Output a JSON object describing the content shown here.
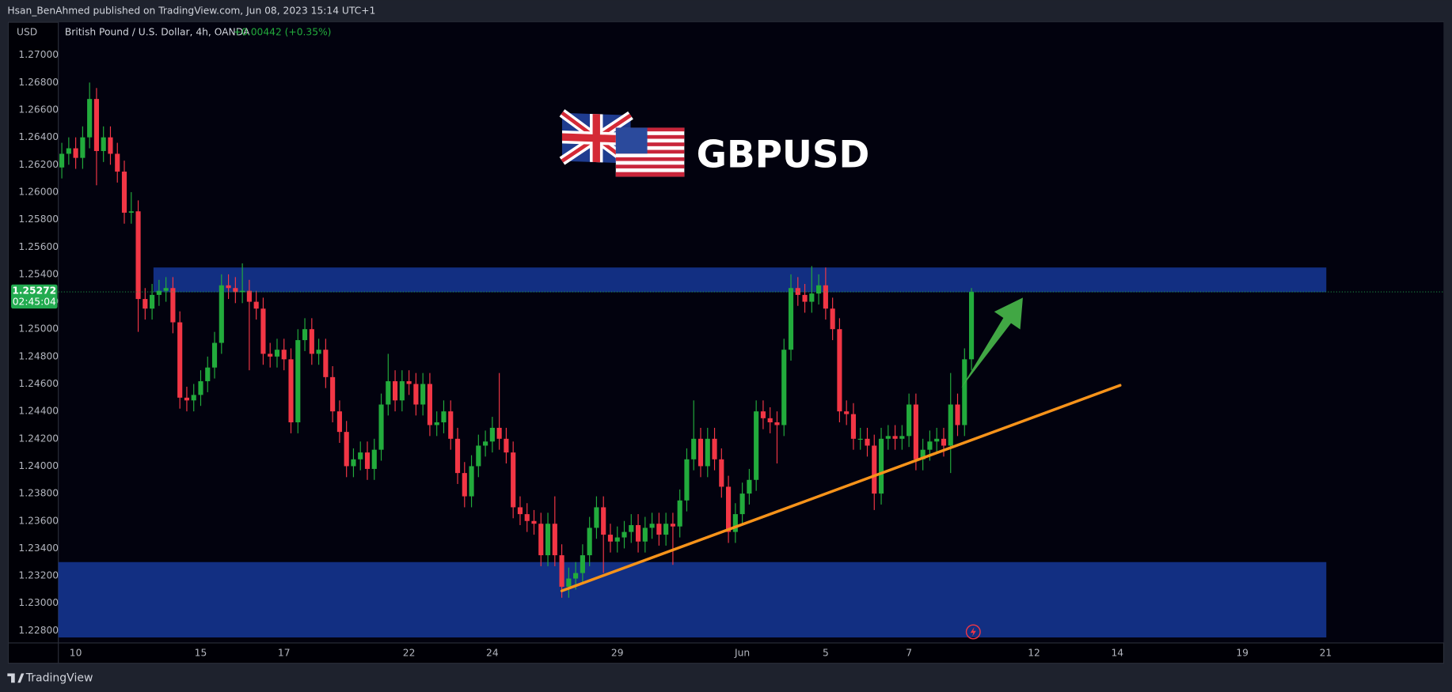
{
  "header": {
    "publisher": "Hsan_BenAhmed published on TradingView.com, Jun 08, 2023 15:14 UTC+1",
    "footer": "TradingView"
  },
  "chart_data": {
    "type": "candlestick",
    "title": "GBPUSD",
    "symbol_description": "British Pound / U.S. Dollar, 4h, OANDA",
    "change": "+0.00442 (+0.35%)",
    "currency": "USD",
    "countdown": "02:45:04",
    "colors": {
      "up": "#22ab3c",
      "down": "#f23645",
      "zone": "#14348f",
      "trendline": "#f7931a",
      "arrow": "#45b048",
      "price_line": "#22ab50"
    },
    "grid": false,
    "xlim": [
      -2.5,
      197
    ],
    "ylim": [
      1.2271,
      1.2724
    ],
    "xticks": [
      {
        "value": 0,
        "label": "10"
      },
      {
        "value": 18,
        "label": "15"
      },
      {
        "value": 30,
        "label": "17"
      },
      {
        "value": 48,
        "label": "22"
      },
      {
        "value": 60,
        "label": "24"
      },
      {
        "value": 78,
        "label": "29"
      },
      {
        "value": 96,
        "label": "Jun"
      },
      {
        "value": 108,
        "label": "5"
      },
      {
        "value": 120,
        "label": "7"
      },
      {
        "value": 138,
        "label": "12"
      },
      {
        "value": 150,
        "label": "14"
      },
      {
        "value": 168,
        "label": "19"
      },
      {
        "value": 180,
        "label": "21"
      }
    ],
    "yticks": [
      {
        "value": 1.228,
        "label": "1.22800"
      },
      {
        "value": 1.23,
        "label": "1.23000"
      },
      {
        "value": 1.232,
        "label": "1.23200"
      },
      {
        "value": 1.234,
        "label": "1.23400"
      },
      {
        "value": 1.236,
        "label": "1.23600"
      },
      {
        "value": 1.238,
        "label": "1.23800"
      },
      {
        "value": 1.24,
        "label": "1.24000"
      },
      {
        "value": 1.242,
        "label": "1.24200"
      },
      {
        "value": 1.244,
        "label": "1.24400"
      },
      {
        "value": 1.246,
        "label": "1.24600"
      },
      {
        "value": 1.248,
        "label": "1.24800"
      },
      {
        "value": 1.25,
        "label": "1.25000"
      },
      {
        "value": 1.252,
        "label": "1.25200"
      },
      {
        "value": 1.254,
        "label": "1.25400"
      },
      {
        "value": 1.256,
        "label": "1.25600"
      },
      {
        "value": 1.258,
        "label": "1.25800"
      },
      {
        "value": 1.26,
        "label": "1.26000"
      },
      {
        "value": 1.262,
        "label": "1.26200"
      },
      {
        "value": 1.264,
        "label": "1.26400"
      },
      {
        "value": 1.266,
        "label": "1.26600"
      },
      {
        "value": 1.268,
        "label": "1.26800"
      },
      {
        "value": 1.27,
        "label": "1.27000"
      }
    ],
    "zones": [
      {
        "xlim": [
          11.2,
          180.1
        ],
        "ylim": [
          1.2527,
          1.2545
        ]
      },
      {
        "xlim": [
          -2.5,
          180.1
        ],
        "ylim": [
          1.2275,
          1.233
        ]
      }
    ],
    "trendline": {
      "x": [
        70,
        150.4
      ],
      "y": [
        1.2309,
        1.2459
      ]
    },
    "arrow": {
      "x": [
        127.5,
        136.4
      ],
      "y": [
        1.2457,
        1.2523
      ]
    },
    "x": [
      -2,
      -1,
      0,
      1,
      2,
      3,
      4,
      5,
      6,
      7,
      8,
      9,
      10,
      11,
      12,
      13,
      14,
      15,
      16,
      17,
      18,
      19,
      20,
      21,
      22,
      23,
      24,
      25,
      26,
      27,
      28,
      29,
      30,
      31,
      32,
      33,
      34,
      35,
      36,
      37,
      38,
      39,
      40,
      41,
      42,
      43,
      44,
      45,
      46,
      47,
      48,
      49,
      50,
      51,
      52,
      53,
      54,
      55,
      56,
      57,
      58,
      59,
      60,
      61,
      62,
      63,
      64,
      65,
      66,
      67,
      68,
      69,
      70,
      71,
      72,
      73,
      74,
      75,
      76,
      77,
      78,
      79,
      80,
      81,
      82,
      83,
      84,
      85,
      86,
      87,
      88,
      89,
      90,
      91,
      92,
      93,
      94,
      95,
      96,
      97,
      98,
      99,
      100,
      101,
      102,
      103,
      104,
      105,
      106,
      107,
      108,
      109,
      110,
      111,
      112,
      113,
      114,
      115,
      116,
      117,
      118,
      119,
      120,
      121,
      122,
      123,
      124,
      125,
      126,
      127,
      128,
      129
    ],
    "open": [
      1.2618,
      1.2628,
      1.2632,
      1.2625,
      1.264,
      1.2668,
      1.263,
      1.264,
      1.2628,
      1.2615,
      1.2585,
      1.2586,
      1.2522,
      1.2515,
      1.2525,
      1.2528,
      1.253,
      1.2505,
      1.245,
      1.2448,
      1.2452,
      1.2462,
      1.2472,
      1.249,
      1.2532,
      1.253,
      1.2527,
      1.2528,
      1.252,
      1.2515,
      1.2482,
      1.248,
      1.2485,
      1.2478,
      1.2432,
      1.2492,
      1.25,
      1.2482,
      1.2485,
      1.2465,
      1.244,
      1.2425,
      1.24,
      1.2405,
      1.241,
      1.2398,
      1.2412,
      1.2445,
      1.2462,
      1.2448,
      1.2462,
      1.246,
      1.2445,
      1.246,
      1.243,
      1.2432,
      1.244,
      1.242,
      1.2395,
      1.2378,
      1.24,
      1.2415,
      1.2418,
      1.2428,
      1.242,
      1.241,
      1.237,
      1.2365,
      1.236,
      1.2358,
      1.2335,
      1.2358,
      1.2335,
      1.2312,
      1.2318,
      1.2322,
      1.2335,
      1.2355,
      1.237,
      1.235,
      1.2345,
      1.2348,
      1.2352,
      1.2357,
      1.2345,
      1.2355,
      1.2358,
      1.235,
      1.2358,
      1.2356,
      1.2375,
      1.2405,
      1.242,
      1.24,
      1.242,
      1.2405,
      1.2385,
      1.2352,
      1.2365,
      1.238,
      1.239,
      1.244,
      1.2435,
      1.2432,
      1.243,
      1.2485,
      1.253,
      1.2525,
      1.252,
      1.2526,
      1.2532,
      1.2515,
      1.25,
      1.244,
      1.2438,
      1.242,
      1.242,
      1.2415,
      1.238,
      1.242,
      1.2422,
      1.242,
      1.2422,
      1.2445,
      1.2405,
      1.2412,
      1.2418,
      1.242,
      1.2415,
      1.2445,
      1.243,
      1.2478
    ],
    "high": [
      1.2636,
      1.264,
      1.264,
      1.2648,
      1.268,
      1.2676,
      1.2648,
      1.2648,
      1.2636,
      1.2623,
      1.26,
      1.2594,
      1.253,
      1.2533,
      1.2536,
      1.2538,
      1.2538,
      1.2513,
      1.2458,
      1.246,
      1.247,
      1.248,
      1.2498,
      1.254,
      1.254,
      1.2538,
      1.2548,
      1.2536,
      1.2528,
      1.2523,
      1.249,
      1.2493,
      1.2493,
      1.2486,
      1.25,
      1.2508,
      1.2508,
      1.2493,
      1.2493,
      1.2473,
      1.2448,
      1.2433,
      1.2413,
      1.2418,
      1.2418,
      1.242,
      1.2453,
      1.2482,
      1.247,
      1.247,
      1.247,
      1.2468,
      1.2468,
      1.2468,
      1.244,
      1.2448,
      1.2448,
      1.2428,
      1.2403,
      1.2408,
      1.2423,
      1.2426,
      1.2436,
      1.2468,
      1.2428,
      1.2418,
      1.2378,
      1.2373,
      1.2368,
      1.2366,
      1.2366,
      1.2378,
      1.2343,
      1.2326,
      1.233,
      1.2343,
      1.2363,
      1.2378,
      1.2378,
      1.2358,
      1.2356,
      1.236,
      1.2365,
      1.2365,
      1.2363,
      1.2366,
      1.2366,
      1.2366,
      1.2366,
      1.2383,
      1.2413,
      1.2448,
      1.2428,
      1.2428,
      1.2428,
      1.2413,
      1.2393,
      1.2373,
      1.2388,
      1.2398,
      1.2448,
      1.2448,
      1.2443,
      1.244,
      1.2493,
      1.254,
      1.2538,
      1.2533,
      1.2546,
      1.254,
      1.2545,
      1.2523,
      1.2508,
      1.2448,
      1.2446,
      1.2428,
      1.2428,
      1.2423,
      1.2428,
      1.243,
      1.243,
      1.243,
      1.2453,
      1.2453,
      1.242,
      1.2426,
      1.2428,
      1.2428,
      1.2468,
      1.2453,
      1.2486,
      1.253
    ],
    "low": [
      1.261,
      1.262,
      1.2617,
      1.2617,
      1.2632,
      1.2605,
      1.2622,
      1.262,
      1.2607,
      1.2577,
      1.2577,
      1.2498,
      1.2507,
      1.2507,
      1.2517,
      1.252,
      1.2497,
      1.2442,
      1.244,
      1.244,
      1.2444,
      1.2454,
      1.2464,
      1.2482,
      1.2522,
      1.2519,
      1.2519,
      1.247,
      1.2507,
      1.2474,
      1.2472,
      1.2472,
      1.247,
      1.2424,
      1.2424,
      1.2484,
      1.2474,
      1.2474,
      1.2457,
      1.2432,
      1.2417,
      1.2392,
      1.2392,
      1.2397,
      1.239,
      1.239,
      1.2404,
      1.2437,
      1.244,
      1.244,
      1.2452,
      1.2437,
      1.2437,
      1.2422,
      1.2422,
      1.2424,
      1.2412,
      1.2387,
      1.237,
      1.237,
      1.2392,
      1.2407,
      1.241,
      1.2412,
      1.2402,
      1.2362,
      1.2357,
      1.2352,
      1.235,
      1.2327,
      1.2327,
      1.2327,
      1.2304,
      1.2304,
      1.231,
      1.2314,
      1.2327,
      1.2347,
      1.2322,
      1.2337,
      1.2337,
      1.234,
      1.2344,
      1.2337,
      1.2337,
      1.2347,
      1.2342,
      1.2342,
      1.2328,
      1.2348,
      1.2367,
      1.2397,
      1.2392,
      1.2392,
      1.2397,
      1.2377,
      1.2344,
      1.2344,
      1.2357,
      1.2372,
      1.2382,
      1.2427,
      1.2424,
      1.2402,
      1.2422,
      1.2477,
      1.2517,
      1.2512,
      1.2512,
      1.2518,
      1.2507,
      1.2492,
      1.2432,
      1.243,
      1.2412,
      1.2412,
      1.2407,
      1.2368,
      1.2372,
      1.2412,
      1.2412,
      1.2412,
      1.2414,
      1.2397,
      1.2397,
      1.2404,
      1.241,
      1.2407,
      1.2395,
      1.2422,
      1.2422,
      1.247
    ],
    "close": [
      1.2628,
      1.2632,
      1.2625,
      1.264,
      1.2668,
      1.263,
      1.264,
      1.2628,
      1.2615,
      1.2585,
      1.2586,
      1.2522,
      1.2515,
      1.2525,
      1.2528,
      1.253,
      1.2505,
      1.245,
      1.2448,
      1.2452,
      1.2462,
      1.2472,
      1.249,
      1.2532,
      1.253,
      1.2527,
      1.2528,
      1.252,
      1.2515,
      1.2482,
      1.248,
      1.2485,
      1.2478,
      1.2432,
      1.2492,
      1.25,
      1.2482,
      1.2485,
      1.2465,
      1.244,
      1.2425,
      1.24,
      1.2405,
      1.241,
      1.2398,
      1.2412,
      1.2445,
      1.2462,
      1.2448,
      1.2462,
      1.246,
      1.2445,
      1.246,
      1.243,
      1.2432,
      1.244,
      1.242,
      1.2395,
      1.2378,
      1.24,
      1.2415,
      1.2418,
      1.2428,
      1.242,
      1.241,
      1.237,
      1.2365,
      1.236,
      1.2358,
      1.2335,
      1.2358,
      1.2335,
      1.2312,
      1.2318,
      1.2322,
      1.2335,
      1.2355,
      1.237,
      1.235,
      1.2345,
      1.2348,
      1.2352,
      1.2357,
      1.2345,
      1.2355,
      1.2358,
      1.235,
      1.2358,
      1.2356,
      1.2375,
      1.2405,
      1.242,
      1.24,
      1.242,
      1.2405,
      1.2385,
      1.2352,
      1.2365,
      1.238,
      1.239,
      1.244,
      1.2435,
      1.2432,
      1.243,
      1.2485,
      1.253,
      1.2525,
      1.252,
      1.2526,
      1.2532,
      1.2515,
      1.25,
      1.244,
      1.2438,
      1.242,
      1.242,
      1.2415,
      1.238,
      1.242,
      1.2422,
      1.242,
      1.2422,
      1.2445,
      1.2405,
      1.2412,
      1.2418,
      1.242,
      1.2415,
      1.2445,
      1.243,
      1.2478,
      1.25272
    ]
  }
}
